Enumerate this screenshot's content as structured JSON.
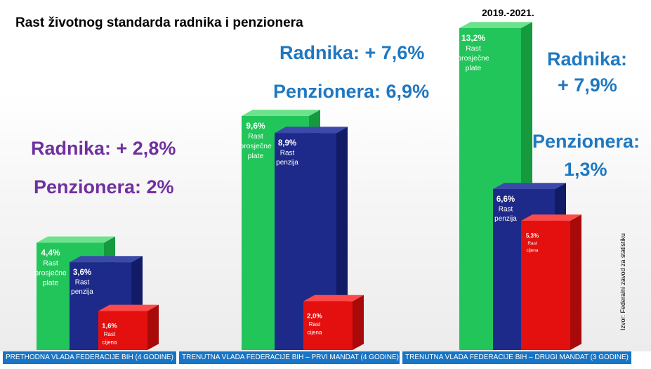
{
  "title": "Rast životnog standarda radnika i penzionera",
  "period_label": "2019.-2021.",
  "source": "Izvor: Federalni zavod za statistiku",
  "colors": {
    "workers": "#22c55a",
    "pensions": "#1d2a8a",
    "prices": "#e3100f",
    "purple": "#7030a0",
    "blue": "#1f78c1",
    "footer": "#1874c4"
  },
  "groups": [
    {
      "footer": "PRETHODNA VLADA FEDERACIJE BIH (4 GODINE)",
      "workers_summary": "Radnika: + 2,8%",
      "pensioners_summary": "Penzionera: 2%"
    },
    {
      "footer": "TRENUTNA VLADA FEDERACIJE BIH – PRVI MANDAT (4 GODINE)",
      "workers_summary": "Radnika: + 7,6%",
      "pensioners_summary": "Penzionera: 6,9%"
    },
    {
      "footer": "TRENUTNA VLADA FEDERACIJE BIH – DRUGI MANDAT (3 GODINE)",
      "workers_summary_line1": "Radnika:",
      "workers_summary_line2": "+ 7,9%",
      "pensioners_summary_line1": "Penzionera:",
      "pensioners_summary_line2": "1,3%"
    }
  ],
  "chart_data": {
    "type": "bar",
    "categories": [
      "PRETHODNA VLADA FEDERACIJE BIH (4 GODINE)",
      "TRENUTNA VLADA FEDERACIJE BIH – PRVI MANDAT (4 GODINE)",
      "TRENUTNA VLADA FEDERACIJE BIH – DRUGI MANDAT (3 GODINE)"
    ],
    "series": [
      {
        "name": "Rast prosječne plate",
        "label_lines": [
          "Rast",
          "prosječne",
          "plate"
        ],
        "values": [
          4.4,
          9.6,
          13.2
        ],
        "value_labels": [
          "4,4%",
          "9,6%",
          "13,2%"
        ]
      },
      {
        "name": "Rast penzija",
        "label_lines": [
          "Rast",
          "penzija"
        ],
        "values": [
          3.6,
          8.9,
          6.6
        ],
        "value_labels": [
          "3,6%",
          "8,9%",
          "6,6%"
        ]
      },
      {
        "name": "Rast cijena",
        "label_lines": [
          "Rast",
          "cijena"
        ],
        "values": [
          1.6,
          2.0,
          5.3
        ],
        "value_labels": [
          "1,6%",
          "2,0%",
          "5,3%"
        ]
      }
    ],
    "ylim": [
      0,
      13.2
    ]
  }
}
